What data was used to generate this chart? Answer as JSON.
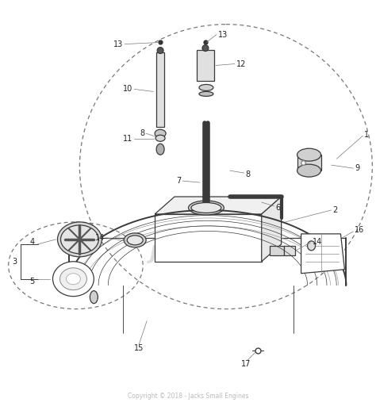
{
  "bg_color": "#ffffff",
  "copyright": "Copyright © 2018 - Jacks Small Engines",
  "copyright_color": "#bbbbbb",
  "line_color": "#3a3a3a",
  "label_color": "#222222",
  "dashed_color": "#777777",
  "watermark": "Jacks®",
  "watermark_color": "#dddddd",
  "figsize": [
    4.74,
    5.17
  ],
  "dpi": 100
}
